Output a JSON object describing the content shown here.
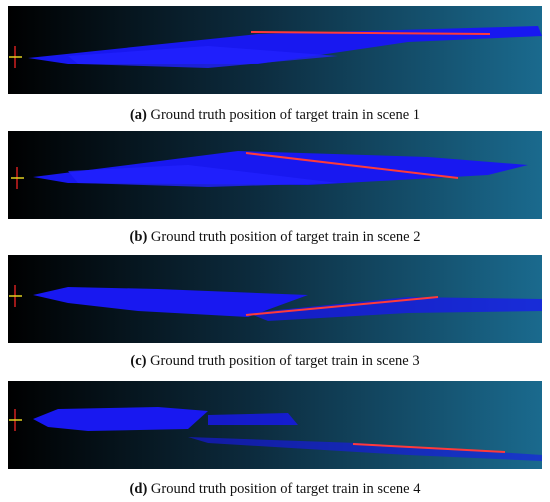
{
  "figures": [
    {
      "label": "(a)",
      "caption": "Ground truth position of target train in scene 1"
    },
    {
      "label": "(b)",
      "caption": "Ground truth position of target train in scene 2"
    },
    {
      "label": "(c)",
      "caption": "Ground truth position of target train in scene 3"
    },
    {
      "label": "(d)",
      "caption": "Ground truth position of target train in scene 4"
    }
  ]
}
